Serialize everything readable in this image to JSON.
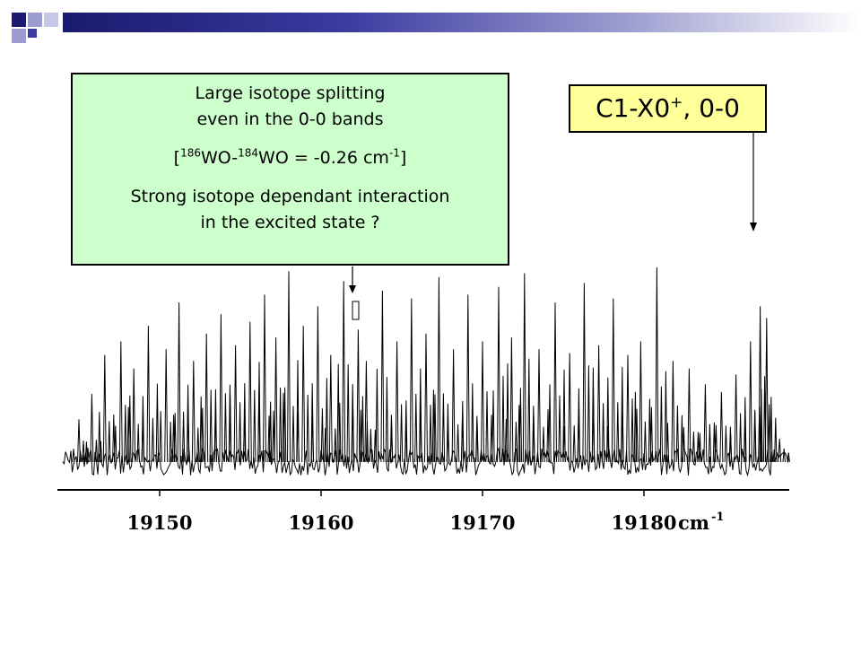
{
  "annotation": {
    "line1": "Large isotope splitting",
    "line2": "even in the 0-0 bands",
    "ratio_open": "[",
    "iso1_mass": "186",
    "iso1_sym": "WO-",
    "iso2_mass": "184",
    "iso2_sym": "WO = -0.26 cm",
    "ratio_unit_exp": "-1",
    "ratio_close": "]",
    "line4": "Strong isotope dependant interaction",
    "line5": "in the excited state ?"
  },
  "band_label": {
    "main": "C1-X0",
    "sup": "+",
    "rest": ", 0-0"
  },
  "colors": {
    "note_bg": "#ccffcc",
    "label_bg": "#ffff99",
    "header_dark": "#1a1a6e",
    "header_light": "#9b9bd0"
  },
  "chart_data": {
    "type": "line",
    "title": "",
    "xlabel": "cm-1",
    "ylabel": "",
    "x_tick_labels": [
      "19150",
      "19160",
      "19170",
      "19180"
    ],
    "x_unit_label": "cm",
    "x_unit_exp": "-1",
    "xlim": [
      19144,
      19189
    ],
    "ylim": [
      0,
      1
    ],
    "grid": false,
    "legend": "none",
    "annotated_positions": [
      {
        "x": 19162.7,
        "label_ref": "annotation"
      },
      {
        "x": 19187.3,
        "label_ref": "band_label"
      }
    ],
    "peaks": [
      {
        "x": 19145.0,
        "y": 0.22
      },
      {
        "x": 19145.8,
        "y": 0.35
      },
      {
        "x": 19146.6,
        "y": 0.55
      },
      {
        "x": 19147.6,
        "y": 0.62
      },
      {
        "x": 19148.4,
        "y": 0.48
      },
      {
        "x": 19149.3,
        "y": 0.7
      },
      {
        "x": 19150.4,
        "y": 0.58
      },
      {
        "x": 19151.2,
        "y": 0.82
      },
      {
        "x": 19152.1,
        "y": 0.52
      },
      {
        "x": 19152.9,
        "y": 0.66
      },
      {
        "x": 19153.8,
        "y": 0.76
      },
      {
        "x": 19154.7,
        "y": 0.6
      },
      {
        "x": 19155.6,
        "y": 0.72
      },
      {
        "x": 19156.5,
        "y": 0.86
      },
      {
        "x": 19157.2,
        "y": 0.64
      },
      {
        "x": 19158.0,
        "y": 0.98
      },
      {
        "x": 19158.9,
        "y": 0.7
      },
      {
        "x": 19159.8,
        "y": 0.8
      },
      {
        "x": 19160.6,
        "y": 0.55
      },
      {
        "x": 19161.4,
        "y": 0.93
      },
      {
        "x": 19162.3,
        "y": 0.68
      },
      {
        "x": 19162.8,
        "y": 0.52
      },
      {
        "x": 19163.8,
        "y": 0.88
      },
      {
        "x": 19164.7,
        "y": 0.62
      },
      {
        "x": 19165.6,
        "y": 0.84
      },
      {
        "x": 19166.5,
        "y": 0.66
      },
      {
        "x": 19167.3,
        "y": 0.95
      },
      {
        "x": 19168.2,
        "y": 0.58
      },
      {
        "x": 19169.1,
        "y": 0.86
      },
      {
        "x": 19170.0,
        "y": 0.62
      },
      {
        "x": 19171.0,
        "y": 0.9
      },
      {
        "x": 19171.8,
        "y": 0.64
      },
      {
        "x": 19172.6,
        "y": 0.97
      },
      {
        "x": 19173.5,
        "y": 0.58
      },
      {
        "x": 19174.5,
        "y": 0.82
      },
      {
        "x": 19175.4,
        "y": 0.56
      },
      {
        "x": 19176.3,
        "y": 0.92
      },
      {
        "x": 19177.2,
        "y": 0.6
      },
      {
        "x": 19178.1,
        "y": 0.84
      },
      {
        "x": 19179.0,
        "y": 0.55
      },
      {
        "x": 19179.8,
        "y": 0.62
      },
      {
        "x": 19180.8,
        "y": 1.0
      },
      {
        "x": 19181.8,
        "y": 0.52
      },
      {
        "x": 19182.8,
        "y": 0.48
      },
      {
        "x": 19183.8,
        "y": 0.4
      },
      {
        "x": 19184.8,
        "y": 0.36
      },
      {
        "x": 19185.7,
        "y": 0.45
      },
      {
        "x": 19186.6,
        "y": 0.62
      },
      {
        "x": 19187.2,
        "y": 0.8
      },
      {
        "x": 19187.6,
        "y": 0.74
      },
      {
        "x": 19188.4,
        "y": 0.12
      }
    ]
  }
}
